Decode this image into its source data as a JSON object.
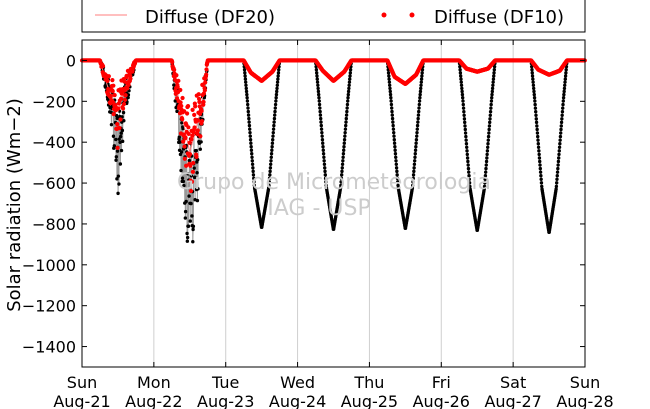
{
  "chart_data": {
    "type": "scatter",
    "title": "",
    "ylabel": "Solar radiation (Wm−2)",
    "xlabel": "",
    "ylim": [
      -1500,
      100
    ],
    "yticks": [
      0,
      -200,
      -400,
      -600,
      -800,
      -1000,
      -1200,
      -1400
    ],
    "xlim": [
      0,
      7
    ],
    "xtick_labels": [
      [
        "Sun",
        "Aug-21"
      ],
      [
        "Mon",
        "Aug-22"
      ],
      [
        "Tue",
        "Aug-23"
      ],
      [
        "Wed",
        "Aug-24"
      ],
      [
        "Thu",
        "Aug-25"
      ],
      [
        "Fri",
        "Aug-26"
      ],
      [
        "Sat",
        "Aug-27"
      ],
      [
        "Sun",
        "Aug-28"
      ]
    ],
    "grid": "vertical",
    "legend_placement": "top (above plot)",
    "watermark": [
      "Grupo de Micrometeorologia",
      "IAG - USP"
    ],
    "colors": {
      "df20": "#ff7f7f",
      "df10": "#ff0000",
      "global": "#000000",
      "trace": "#999999"
    },
    "series": [
      {
        "name": "Diffuse (DF20)",
        "style": "line",
        "x": [
          0.25,
          0.35,
          0.5,
          0.65,
          0.75,
          1.25,
          1.35,
          1.5,
          1.65,
          1.75,
          2.25,
          2.35,
          2.5,
          2.65,
          2.75,
          3.25,
          3.35,
          3.5,
          3.65,
          3.75,
          4.25,
          4.35,
          4.5,
          4.65,
          4.75,
          5.25,
          5.35,
          5.5,
          5.65,
          5.75,
          6.25,
          6.35,
          6.5,
          6.65,
          6.75
        ],
        "y": [
          0,
          -120,
          -250,
          -80,
          0,
          0,
          -200,
          -450,
          -250,
          0,
          0,
          -60,
          -100,
          -55,
          0,
          0,
          -50,
          -100,
          -55,
          0,
          0,
          -80,
          -115,
          -70,
          0,
          0,
          -40,
          -55,
          -40,
          0,
          0,
          -45,
          -70,
          -50,
          0
        ]
      },
      {
        "name": "Diffuse (DF10)",
        "style": "dots",
        "x": [
          0.25,
          0.35,
          0.45,
          0.5,
          0.55,
          0.65,
          0.75,
          1.25,
          1.35,
          1.45,
          1.5,
          1.55,
          1.65,
          1.75,
          2.25,
          2.35,
          2.5,
          2.65,
          2.75,
          3.25,
          3.35,
          3.5,
          3.65,
          3.75,
          4.25,
          4.35,
          4.5,
          4.65,
          4.75,
          5.25,
          5.35,
          5.5,
          5.65,
          5.75,
          6.25,
          6.35,
          6.5,
          6.65,
          6.75
        ],
        "y": [
          0,
          -120,
          -200,
          -300,
          -180,
          -80,
          0,
          0,
          -200,
          -380,
          -500,
          -400,
          -250,
          0,
          0,
          -60,
          -100,
          -55,
          0,
          0,
          -50,
          -100,
          -55,
          0,
          0,
          -80,
          -115,
          -70,
          0,
          0,
          -40,
          -55,
          -40,
          0,
          0,
          -45,
          -70,
          -50,
          0
        ]
      },
      {
        "name": "",
        "style": "dots",
        "x": [
          0.3,
          0.4,
          0.5,
          0.6,
          0.7,
          1.3,
          1.4,
          1.5,
          1.6,
          1.7,
          2.3,
          2.4,
          2.5,
          2.6,
          2.7,
          3.3,
          3.4,
          3.5,
          3.6,
          3.7,
          4.3,
          4.4,
          4.5,
          4.6,
          4.7,
          5.3,
          5.4,
          5.5,
          5.6,
          5.7,
          6.3,
          6.4,
          6.5,
          6.6,
          6.7
        ],
        "y": [
          -60,
          -200,
          -460,
          -200,
          -60,
          -150,
          -450,
          -700,
          -500,
          -150,
          -190,
          -620,
          -820,
          -620,
          -190,
          -190,
          -620,
          -830,
          -620,
          -190,
          -190,
          -620,
          -825,
          -620,
          -190,
          -190,
          -625,
          -835,
          -625,
          -190,
          -190,
          -625,
          -845,
          -625,
          -190
        ]
      }
    ]
  }
}
